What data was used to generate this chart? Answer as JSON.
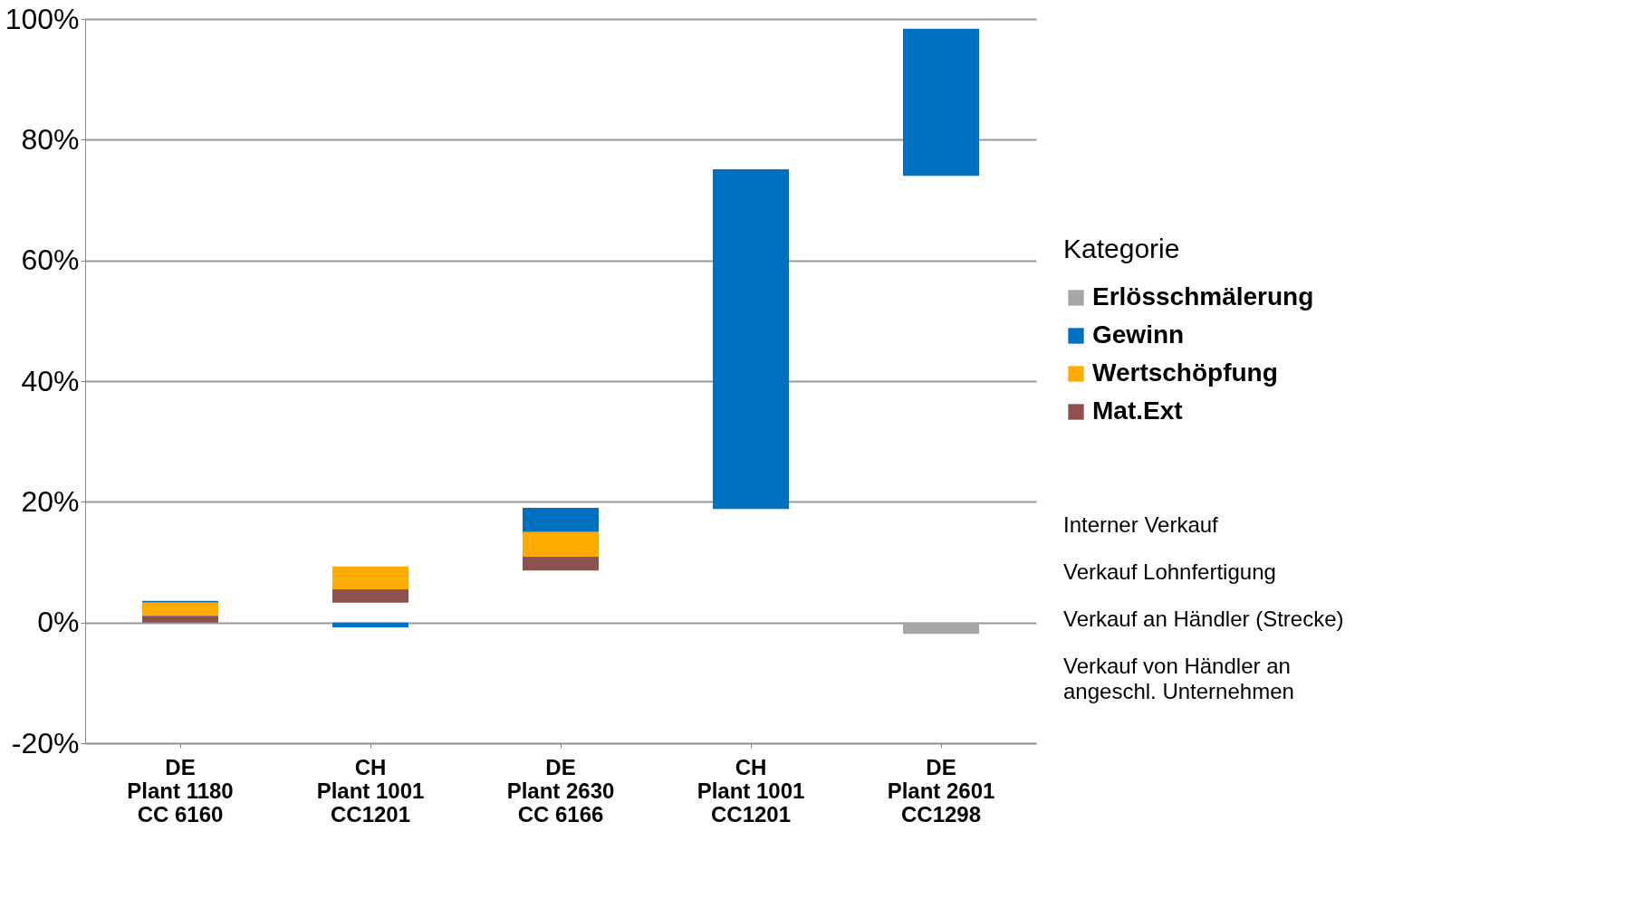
{
  "chart_data": {
    "type": "bar",
    "legend_title": "Kategorie",
    "categories": [
      "DE\nPlant 1180\nCC 6160",
      "CH\nPlant 1001\nCC1201",
      "DE\nPlant 2630\nCC 6166",
      "CH\nPlant 1001\nCC1201",
      "DE\nPlant 2601\nCC1298"
    ],
    "series": [
      {
        "name": "Erlösschmälerung",
        "color": "#a6a6a6",
        "base": [
          null,
          null,
          null,
          null,
          0
        ],
        "values": [
          null,
          null,
          null,
          null,
          -1.9
        ]
      },
      {
        "name": "Gewinn",
        "color": "#0070c0",
        "base": [
          3.3,
          0,
          15.0,
          18.8,
          74.0
        ],
        "values": [
          0.3,
          -0.8,
          4.0,
          56.3,
          24.4
        ]
      },
      {
        "name": "Wertschöpfung",
        "color": "#ffab00",
        "base": [
          1.1,
          5.5,
          10.9,
          null,
          null
        ],
        "values": [
          2.2,
          3.8,
          4.1,
          null,
          null
        ]
      },
      {
        "name": "Mat.Ext",
        "color": "#8f5050",
        "base": [
          0,
          3.3,
          8.6,
          null,
          null
        ],
        "values": [
          1.1,
          2.2,
          2.3,
          null,
          null
        ]
      }
    ],
    "ylim": [
      -20,
      100
    ],
    "yticks": [
      {
        "value": -20,
        "label": "-20%"
      },
      {
        "value": 0,
        "label": "0%"
      },
      {
        "value": 20,
        "label": "20%"
      },
      {
        "value": 40,
        "label": "40%"
      },
      {
        "value": 60,
        "label": "60%"
      },
      {
        "value": 80,
        "label": "80%"
      },
      {
        "value": 100,
        "label": "100%"
      }
    ],
    "grid": "y",
    "legend": "right",
    "annotations": [
      "Interner Verkauf",
      "Verkauf Lohnfertigung",
      "Verkauf an Händler (Strecke)",
      "Verkauf von Händler an\nangeschl. Unternehmen"
    ]
  }
}
